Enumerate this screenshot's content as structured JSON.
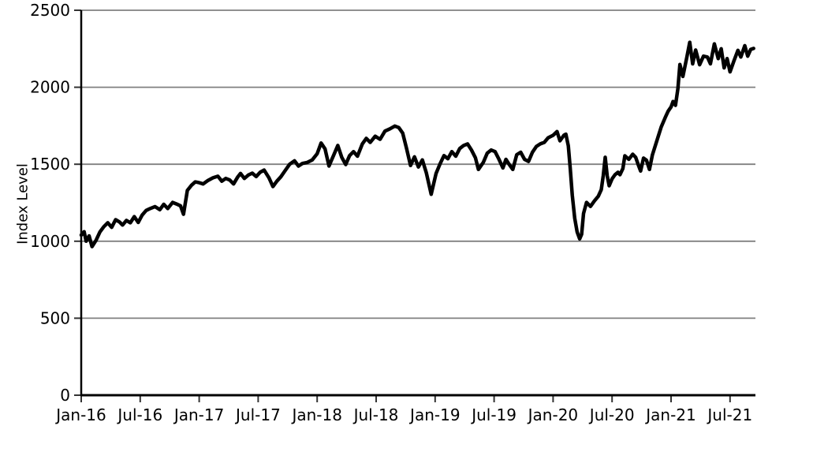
{
  "chart_data": {
    "type": "line",
    "title": "",
    "xlabel": "",
    "ylabel": "Index Level",
    "legend": "none",
    "grid": "horizontal gridlines at every 500 units",
    "background_color": "#ffffff",
    "line_color": "#000000",
    "grid_color": "#808080",
    "axis_color": "#000000",
    "tick_color": "#333333",
    "ylim": [
      0,
      2500
    ],
    "y_ticks": [
      0,
      500,
      1000,
      1500,
      2000,
      2500
    ],
    "x_unit": "months since Jan-2016 (fractional = intra-month)",
    "x_range_months": [
      0,
      68.4
    ],
    "x_ticks": [
      {
        "m": 0,
        "label": "Jan-16"
      },
      {
        "m": 6,
        "label": "Jul-16"
      },
      {
        "m": 12,
        "label": "Jan-17"
      },
      {
        "m": 18,
        "label": "Jul-17"
      },
      {
        "m": 24,
        "label": "Jan-18"
      },
      {
        "m": 30,
        "label": "Jul-18"
      },
      {
        "m": 36,
        "label": "Jan-19"
      },
      {
        "m": 42,
        "label": "Jul-19"
      },
      {
        "m": 48,
        "label": "Jan-20"
      },
      {
        "m": 54,
        "label": "Jul-20"
      },
      {
        "m": 60,
        "label": "Jan-21"
      },
      {
        "m": 66,
        "label": "Jul-21"
      }
    ],
    "series": [
      {
        "name": "Index Level",
        "points": [
          [
            0,
            1040
          ],
          [
            0.3,
            1062
          ],
          [
            0.5,
            1000
          ],
          [
            0.8,
            1035
          ],
          [
            1.1,
            965
          ],
          [
            1.5,
            1005
          ],
          [
            1.9,
            1060
          ],
          [
            2.3,
            1095
          ],
          [
            2.7,
            1120
          ],
          [
            3.1,
            1090
          ],
          [
            3.5,
            1140
          ],
          [
            3.9,
            1125
          ],
          [
            4.2,
            1105
          ],
          [
            4.6,
            1135
          ],
          [
            5.0,
            1120
          ],
          [
            5.4,
            1160
          ],
          [
            5.8,
            1122
          ],
          [
            6.2,
            1170
          ],
          [
            6.6,
            1200
          ],
          [
            7.0,
            1212
          ],
          [
            7.5,
            1225
          ],
          [
            8.0,
            1205
          ],
          [
            8.4,
            1240
          ],
          [
            8.8,
            1212
          ],
          [
            9.3,
            1252
          ],
          [
            9.7,
            1242
          ],
          [
            10.1,
            1230
          ],
          [
            10.4,
            1175
          ],
          [
            10.8,
            1330
          ],
          [
            11.2,
            1362
          ],
          [
            11.6,
            1385
          ],
          [
            12.0,
            1380
          ],
          [
            12.4,
            1372
          ],
          [
            12.9,
            1395
          ],
          [
            13.4,
            1412
          ],
          [
            13.9,
            1422
          ],
          [
            14.3,
            1390
          ],
          [
            14.7,
            1408
          ],
          [
            15.1,
            1398
          ],
          [
            15.5,
            1372
          ],
          [
            15.9,
            1415
          ],
          [
            16.2,
            1440
          ],
          [
            16.6,
            1408
          ],
          [
            17.0,
            1430
          ],
          [
            17.4,
            1442
          ],
          [
            17.8,
            1420
          ],
          [
            18.2,
            1448
          ],
          [
            18.6,
            1462
          ],
          [
            19.1,
            1412
          ],
          [
            19.5,
            1355
          ],
          [
            19.9,
            1390
          ],
          [
            20.3,
            1418
          ],
          [
            20.7,
            1455
          ],
          [
            21.2,
            1500
          ],
          [
            21.7,
            1522
          ],
          [
            22.1,
            1488
          ],
          [
            22.5,
            1505
          ],
          [
            23.0,
            1512
          ],
          [
            23.5,
            1528
          ],
          [
            24.0,
            1568
          ],
          [
            24.4,
            1638
          ],
          [
            24.8,
            1600
          ],
          [
            25.2,
            1488
          ],
          [
            25.7,
            1562
          ],
          [
            26.1,
            1622
          ],
          [
            26.5,
            1545
          ],
          [
            26.9,
            1498
          ],
          [
            27.3,
            1556
          ],
          [
            27.7,
            1582
          ],
          [
            28.1,
            1552
          ],
          [
            28.6,
            1632
          ],
          [
            29.0,
            1668
          ],
          [
            29.4,
            1642
          ],
          [
            29.9,
            1682
          ],
          [
            30.4,
            1662
          ],
          [
            30.9,
            1715
          ],
          [
            31.4,
            1730
          ],
          [
            31.9,
            1748
          ],
          [
            32.3,
            1738
          ],
          [
            32.7,
            1702
          ],
          [
            33.1,
            1602
          ],
          [
            33.5,
            1492
          ],
          [
            33.9,
            1548
          ],
          [
            34.3,
            1482
          ],
          [
            34.7,
            1528
          ],
          [
            35.1,
            1445
          ],
          [
            35.6,
            1305
          ],
          [
            36.1,
            1440
          ],
          [
            36.5,
            1502
          ],
          [
            36.9,
            1556
          ],
          [
            37.3,
            1536
          ],
          [
            37.7,
            1582
          ],
          [
            38.1,
            1552
          ],
          [
            38.5,
            1602
          ],
          [
            38.9,
            1622
          ],
          [
            39.3,
            1632
          ],
          [
            39.7,
            1592
          ],
          [
            40.1,
            1542
          ],
          [
            40.4,
            1466
          ],
          [
            40.9,
            1512
          ],
          [
            41.3,
            1572
          ],
          [
            41.7,
            1592
          ],
          [
            42.1,
            1582
          ],
          [
            42.5,
            1532
          ],
          [
            42.9,
            1476
          ],
          [
            43.2,
            1532
          ],
          [
            43.5,
            1502
          ],
          [
            43.9,
            1466
          ],
          [
            44.3,
            1562
          ],
          [
            44.7,
            1578
          ],
          [
            45.1,
            1532
          ],
          [
            45.5,
            1518
          ],
          [
            45.9,
            1578
          ],
          [
            46.3,
            1616
          ],
          [
            46.7,
            1632
          ],
          [
            47.1,
            1642
          ],
          [
            47.5,
            1672
          ],
          [
            48.0,
            1688
          ],
          [
            48.4,
            1712
          ],
          [
            48.7,
            1652
          ],
          [
            49.1,
            1688
          ],
          [
            49.3,
            1695
          ],
          [
            49.55,
            1620
          ],
          [
            49.75,
            1470
          ],
          [
            49.95,
            1300
          ],
          [
            50.2,
            1150
          ],
          [
            50.45,
            1060
          ],
          [
            50.7,
            1015
          ],
          [
            50.9,
            1045
          ],
          [
            51.1,
            1180
          ],
          [
            51.4,
            1252
          ],
          [
            51.8,
            1226
          ],
          [
            52.2,
            1262
          ],
          [
            52.6,
            1292
          ],
          [
            52.9,
            1335
          ],
          [
            53.1,
            1425
          ],
          [
            53.3,
            1545
          ],
          [
            53.5,
            1425
          ],
          [
            53.7,
            1360
          ],
          [
            54.0,
            1405
          ],
          [
            54.3,
            1432
          ],
          [
            54.6,
            1448
          ],
          [
            54.8,
            1432
          ],
          [
            55.1,
            1472
          ],
          [
            55.3,
            1555
          ],
          [
            55.7,
            1532
          ],
          [
            56.1,
            1565
          ],
          [
            56.4,
            1545
          ],
          [
            56.7,
            1490
          ],
          [
            56.9,
            1456
          ],
          [
            57.2,
            1540
          ],
          [
            57.5,
            1526
          ],
          [
            57.8,
            1466
          ],
          [
            58.1,
            1560
          ],
          [
            58.4,
            1622
          ],
          [
            58.7,
            1682
          ],
          [
            59.0,
            1742
          ],
          [
            59.4,
            1802
          ],
          [
            59.7,
            1845
          ],
          [
            60.0,
            1872
          ],
          [
            60.2,
            1908
          ],
          [
            60.45,
            1882
          ],
          [
            60.7,
            1992
          ],
          [
            60.9,
            2148
          ],
          [
            61.2,
            2070
          ],
          [
            61.6,
            2192
          ],
          [
            61.9,
            2292
          ],
          [
            62.2,
            2152
          ],
          [
            62.5,
            2242
          ],
          [
            62.9,
            2146
          ],
          [
            63.3,
            2202
          ],
          [
            63.7,
            2196
          ],
          [
            64.0,
            2152
          ],
          [
            64.4,
            2282
          ],
          [
            64.8,
            2186
          ],
          [
            65.1,
            2250
          ],
          [
            65.4,
            2126
          ],
          [
            65.7,
            2186
          ],
          [
            66.0,
            2100
          ],
          [
            66.4,
            2172
          ],
          [
            66.8,
            2240
          ],
          [
            67.1,
            2196
          ],
          [
            67.5,
            2270
          ],
          [
            67.8,
            2202
          ],
          [
            68.1,
            2246
          ],
          [
            68.4,
            2252
          ]
        ]
      }
    ]
  }
}
